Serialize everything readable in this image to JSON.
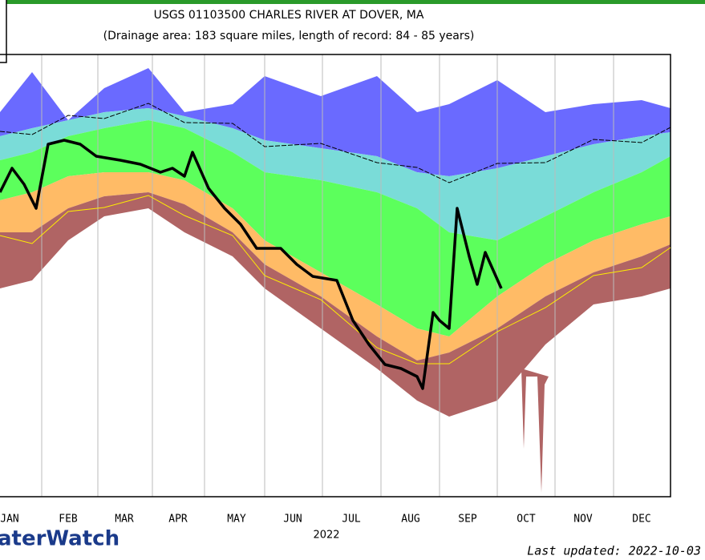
{
  "chart_data": {
    "type": "area",
    "title": "USGS 01103500 CHARLES RIVER AT DOVER, MA",
    "subtitle": "(Drainage area: 183 square miles, length of record: 84 - 85 years)",
    "categories": [
      "JAN",
      "FEB",
      "MAR",
      "APR",
      "MAY",
      "JUN",
      "JUL",
      "AUG",
      "SEP",
      "OCT",
      "NOV",
      "DEC"
    ],
    "x_label": "2022",
    "brand": "aterWatch",
    "updated": "Last updated: 2022-10-03"
  }
}
